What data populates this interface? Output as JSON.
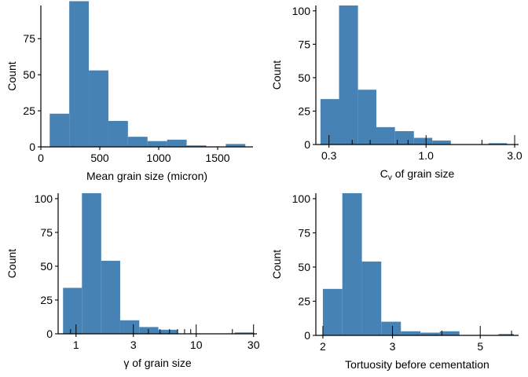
{
  "style": {
    "bar_color": "#4682B4",
    "axis_color": "#000000",
    "background": "#ffffff"
  },
  "chart_data": [
    {
      "type": "bar",
      "id": "mean-grain-size",
      "xlabel": "Mean grain size (micron)",
      "ylabel": "Count",
      "x_scale": "linear",
      "xlim": [
        0,
        1800
      ],
      "ylim": [
        0,
        98
      ],
      "x_ticks": [
        0,
        500,
        1000,
        1500
      ],
      "x_tick_labels": [
        "0",
        "500",
        "1000",
        "1500"
      ],
      "y_ticks": [
        0,
        25,
        50,
        75
      ],
      "y_tick_labels": [
        "0",
        "25",
        "50",
        "75"
      ],
      "bins": [
        {
          "x0": 75,
          "x1": 241,
          "count": 23
        },
        {
          "x0": 241,
          "x1": 407,
          "count": 101
        },
        {
          "x0": 407,
          "x1": 573,
          "count": 53
        },
        {
          "x0": 573,
          "x1": 739,
          "count": 18
        },
        {
          "x0": 739,
          "x1": 905,
          "count": 7
        },
        {
          "x0": 905,
          "x1": 1071,
          "count": 4
        },
        {
          "x0": 1071,
          "x1": 1237,
          "count": 5
        },
        {
          "x0": 1237,
          "x1": 1403,
          "count": 1
        },
        {
          "x0": 1403,
          "x1": 1569,
          "count": 0
        },
        {
          "x0": 1569,
          "x1": 1735,
          "count": 2
        }
      ],
      "rug_minor": []
    },
    {
      "type": "bar",
      "id": "cv-grain-size",
      "xlabel": "C",
      "xlabel_sub": "v",
      "xlabel_rest": " of grain size",
      "ylabel": "Count",
      "x_scale": "log",
      "xlim": [
        0.255,
        3.15
      ],
      "ylim": [
        0,
        104
      ],
      "x_ticks": [
        0.3,
        1.0,
        3.0
      ],
      "x_tick_labels": [
        "0.3",
        "1.0",
        "3.0"
      ],
      "y_ticks": [
        0,
        25,
        50,
        75,
        100
      ],
      "y_tick_labels": [
        "0",
        "25",
        "50",
        "75",
        "100"
      ],
      "bins": [
        {
          "x0": 0.27,
          "x1": 0.34,
          "count": 34
        },
        {
          "x0": 0.34,
          "x1": 0.43,
          "count": 104
        },
        {
          "x0": 0.43,
          "x1": 0.54,
          "count": 41
        },
        {
          "x0": 0.54,
          "x1": 0.68,
          "count": 13
        },
        {
          "x0": 0.68,
          "x1": 0.86,
          "count": 10
        },
        {
          "x0": 0.86,
          "x1": 1.08,
          "count": 5
        },
        {
          "x0": 1.08,
          "x1": 1.36,
          "count": 3
        },
        {
          "x0": 1.36,
          "x1": 1.72,
          "count": 0
        },
        {
          "x0": 1.72,
          "x1": 2.17,
          "count": 0
        },
        {
          "x0": 2.17,
          "x1": 2.73,
          "count": 1
        }
      ],
      "rug_minor": [
        0.4,
        0.5,
        0.7,
        0.8,
        2.0
      ]
    },
    {
      "type": "bar",
      "id": "gamma-grain-size",
      "xlabel": "γ of grain size",
      "ylabel": "Count",
      "x_scale": "log",
      "xlim": [
        0.71,
        32
      ],
      "ylim": [
        0,
        104
      ],
      "x_ticks": [
        1,
        3,
        10,
        30
      ],
      "x_tick_labels": [
        "1",
        "3",
        "10",
        "30"
      ],
      "y_ticks": [
        0,
        25,
        50,
        75,
        100
      ],
      "y_tick_labels": [
        "0",
        "25",
        "50",
        "75",
        "100"
      ],
      "bins": [
        {
          "x0": 0.78,
          "x1": 1.12,
          "count": 34
        },
        {
          "x0": 1.12,
          "x1": 1.62,
          "count": 104
        },
        {
          "x0": 1.62,
          "x1": 2.33,
          "count": 54
        },
        {
          "x0": 2.33,
          "x1": 3.36,
          "count": 10
        },
        {
          "x0": 3.36,
          "x1": 4.84,
          "count": 5
        },
        {
          "x0": 4.84,
          "x1": 6.97,
          "count": 3
        },
        {
          "x0": 6.97,
          "x1": 10.0,
          "count": 0
        },
        {
          "x0": 10.0,
          "x1": 14.5,
          "count": 0
        },
        {
          "x0": 14.5,
          "x1": 20.9,
          "count": 0
        },
        {
          "x0": 20.9,
          "x1": 30.0,
          "count": 1
        }
      ],
      "rug_minor": [
        0.9,
        4.0,
        5.0,
        6.0,
        7.0,
        8.0,
        9.0,
        20.0
      ]
    },
    {
      "type": "bar",
      "id": "tortuosity",
      "xlabel": "Tortuosity before cementation",
      "ylabel": "Count",
      "x_scale": "log",
      "xlim": [
        1.92,
        6.25
      ],
      "ylim": [
        0,
        104
      ],
      "x_ticks": [
        2,
        3,
        5
      ],
      "x_tick_labels": [
        "2",
        "3",
        "5"
      ],
      "y_ticks": [
        0,
        25,
        50,
        75,
        100
      ],
      "y_tick_labels": [
        "0",
        "25",
        "50",
        "75",
        "100"
      ],
      "bins": [
        {
          "x0": 2.0,
          "x1": 2.24,
          "count": 34
        },
        {
          "x0": 2.24,
          "x1": 2.51,
          "count": 104
        },
        {
          "x0": 2.51,
          "x1": 2.81,
          "count": 54
        },
        {
          "x0": 2.81,
          "x1": 3.15,
          "count": 10
        },
        {
          "x0": 3.15,
          "x1": 3.53,
          "count": 3
        },
        {
          "x0": 3.53,
          "x1": 3.95,
          "count": 2
        },
        {
          "x0": 3.95,
          "x1": 4.43,
          "count": 3
        },
        {
          "x0": 4.43,
          "x1": 4.96,
          "count": 0
        },
        {
          "x0": 4.96,
          "x1": 5.56,
          "count": 0
        },
        {
          "x0": 5.56,
          "x1": 6.08,
          "count": 1
        }
      ],
      "rug_minor": [
        4.0,
        6.0
      ]
    }
  ]
}
